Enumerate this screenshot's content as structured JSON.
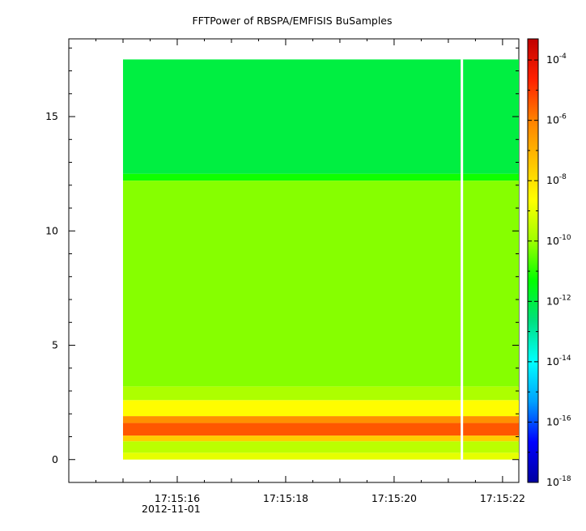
{
  "chart_data": {
    "type": "heatmap",
    "title": "FFTPower of RBSPA/EMFISIS  BuSamples",
    "xlabel": "",
    "ylabel": "",
    "x_start_label": "2012-11-01",
    "x_ticks": [
      "17:15:16",
      "17:15:18",
      "17:15:20",
      "17:15:22"
    ],
    "x_range_seconds": [
      14.0,
      22.3
    ],
    "data_x_range_seconds": [
      15.0,
      22.3
    ],
    "gap_x_seconds": 21.25,
    "y_ticks": [
      0,
      5,
      10,
      15
    ],
    "ylim": [
      -1,
      18.4
    ],
    "data_y_range": [
      0,
      17.5
    ],
    "colorbar": {
      "scale": "log",
      "range_exp": [
        -18,
        -3.3
      ],
      "tick_mantissa": "10",
      "tick_exponents": [
        "-4",
        "-6",
        "-8",
        "-10",
        "-12",
        "-14",
        "-16",
        "-18"
      ],
      "colormap": [
        "#0000a0",
        "#0000ff",
        "#00a0ff",
        "#00ffff",
        "#00e080",
        "#00ff00",
        "#a0ff00",
        "#ffff00",
        "#ffc000",
        "#ff8000",
        "#ff2000",
        "#c00000"
      ]
    },
    "bands": [
      {
        "y": [
          0.0,
          0.3
        ],
        "log_power": -9.0
      },
      {
        "y": [
          0.3,
          0.8
        ],
        "log_power": -9.6
      },
      {
        "y": [
          0.8,
          1.05
        ],
        "log_power": -7.6
      },
      {
        "y": [
          1.05,
          1.6
        ],
        "log_power": -5.4
      },
      {
        "y": [
          1.6,
          1.9
        ],
        "log_power": -6.3
      },
      {
        "y": [
          1.9,
          2.6
        ],
        "log_power": -8.6
      },
      {
        "y": [
          2.6,
          3.2
        ],
        "log_power": -9.8
      },
      {
        "y": [
          3.2,
          12.2
        ],
        "log_power": -10.2
      },
      {
        "y": [
          12.2,
          12.5
        ],
        "log_power": -11.2
      },
      {
        "y": [
          12.5,
          17.5
        ],
        "log_power": -12.0
      }
    ]
  }
}
